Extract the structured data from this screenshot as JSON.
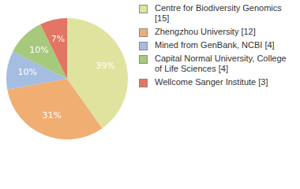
{
  "chart_data": {
    "type": "pie",
    "categories": [
      "Centre for Biodiversity Genomics [15]",
      "Zhengzhou University [12]",
      "Mined from GenBank, NCBI [4]",
      "Capital Normal University, College of Life Sciences [4]",
      "Wellcome Sanger Institute [3]"
    ],
    "values": [
      39,
      31,
      10,
      10,
      7
    ],
    "value_labels": [
      "39%",
      "31%",
      "10%",
      "10%",
      "7%"
    ],
    "colors": [
      "#dfe39e",
      "#f0ae73",
      "#a5bde0",
      "#a6c97c",
      "#e27563"
    ],
    "data_labels": true,
    "legend": "right"
  }
}
